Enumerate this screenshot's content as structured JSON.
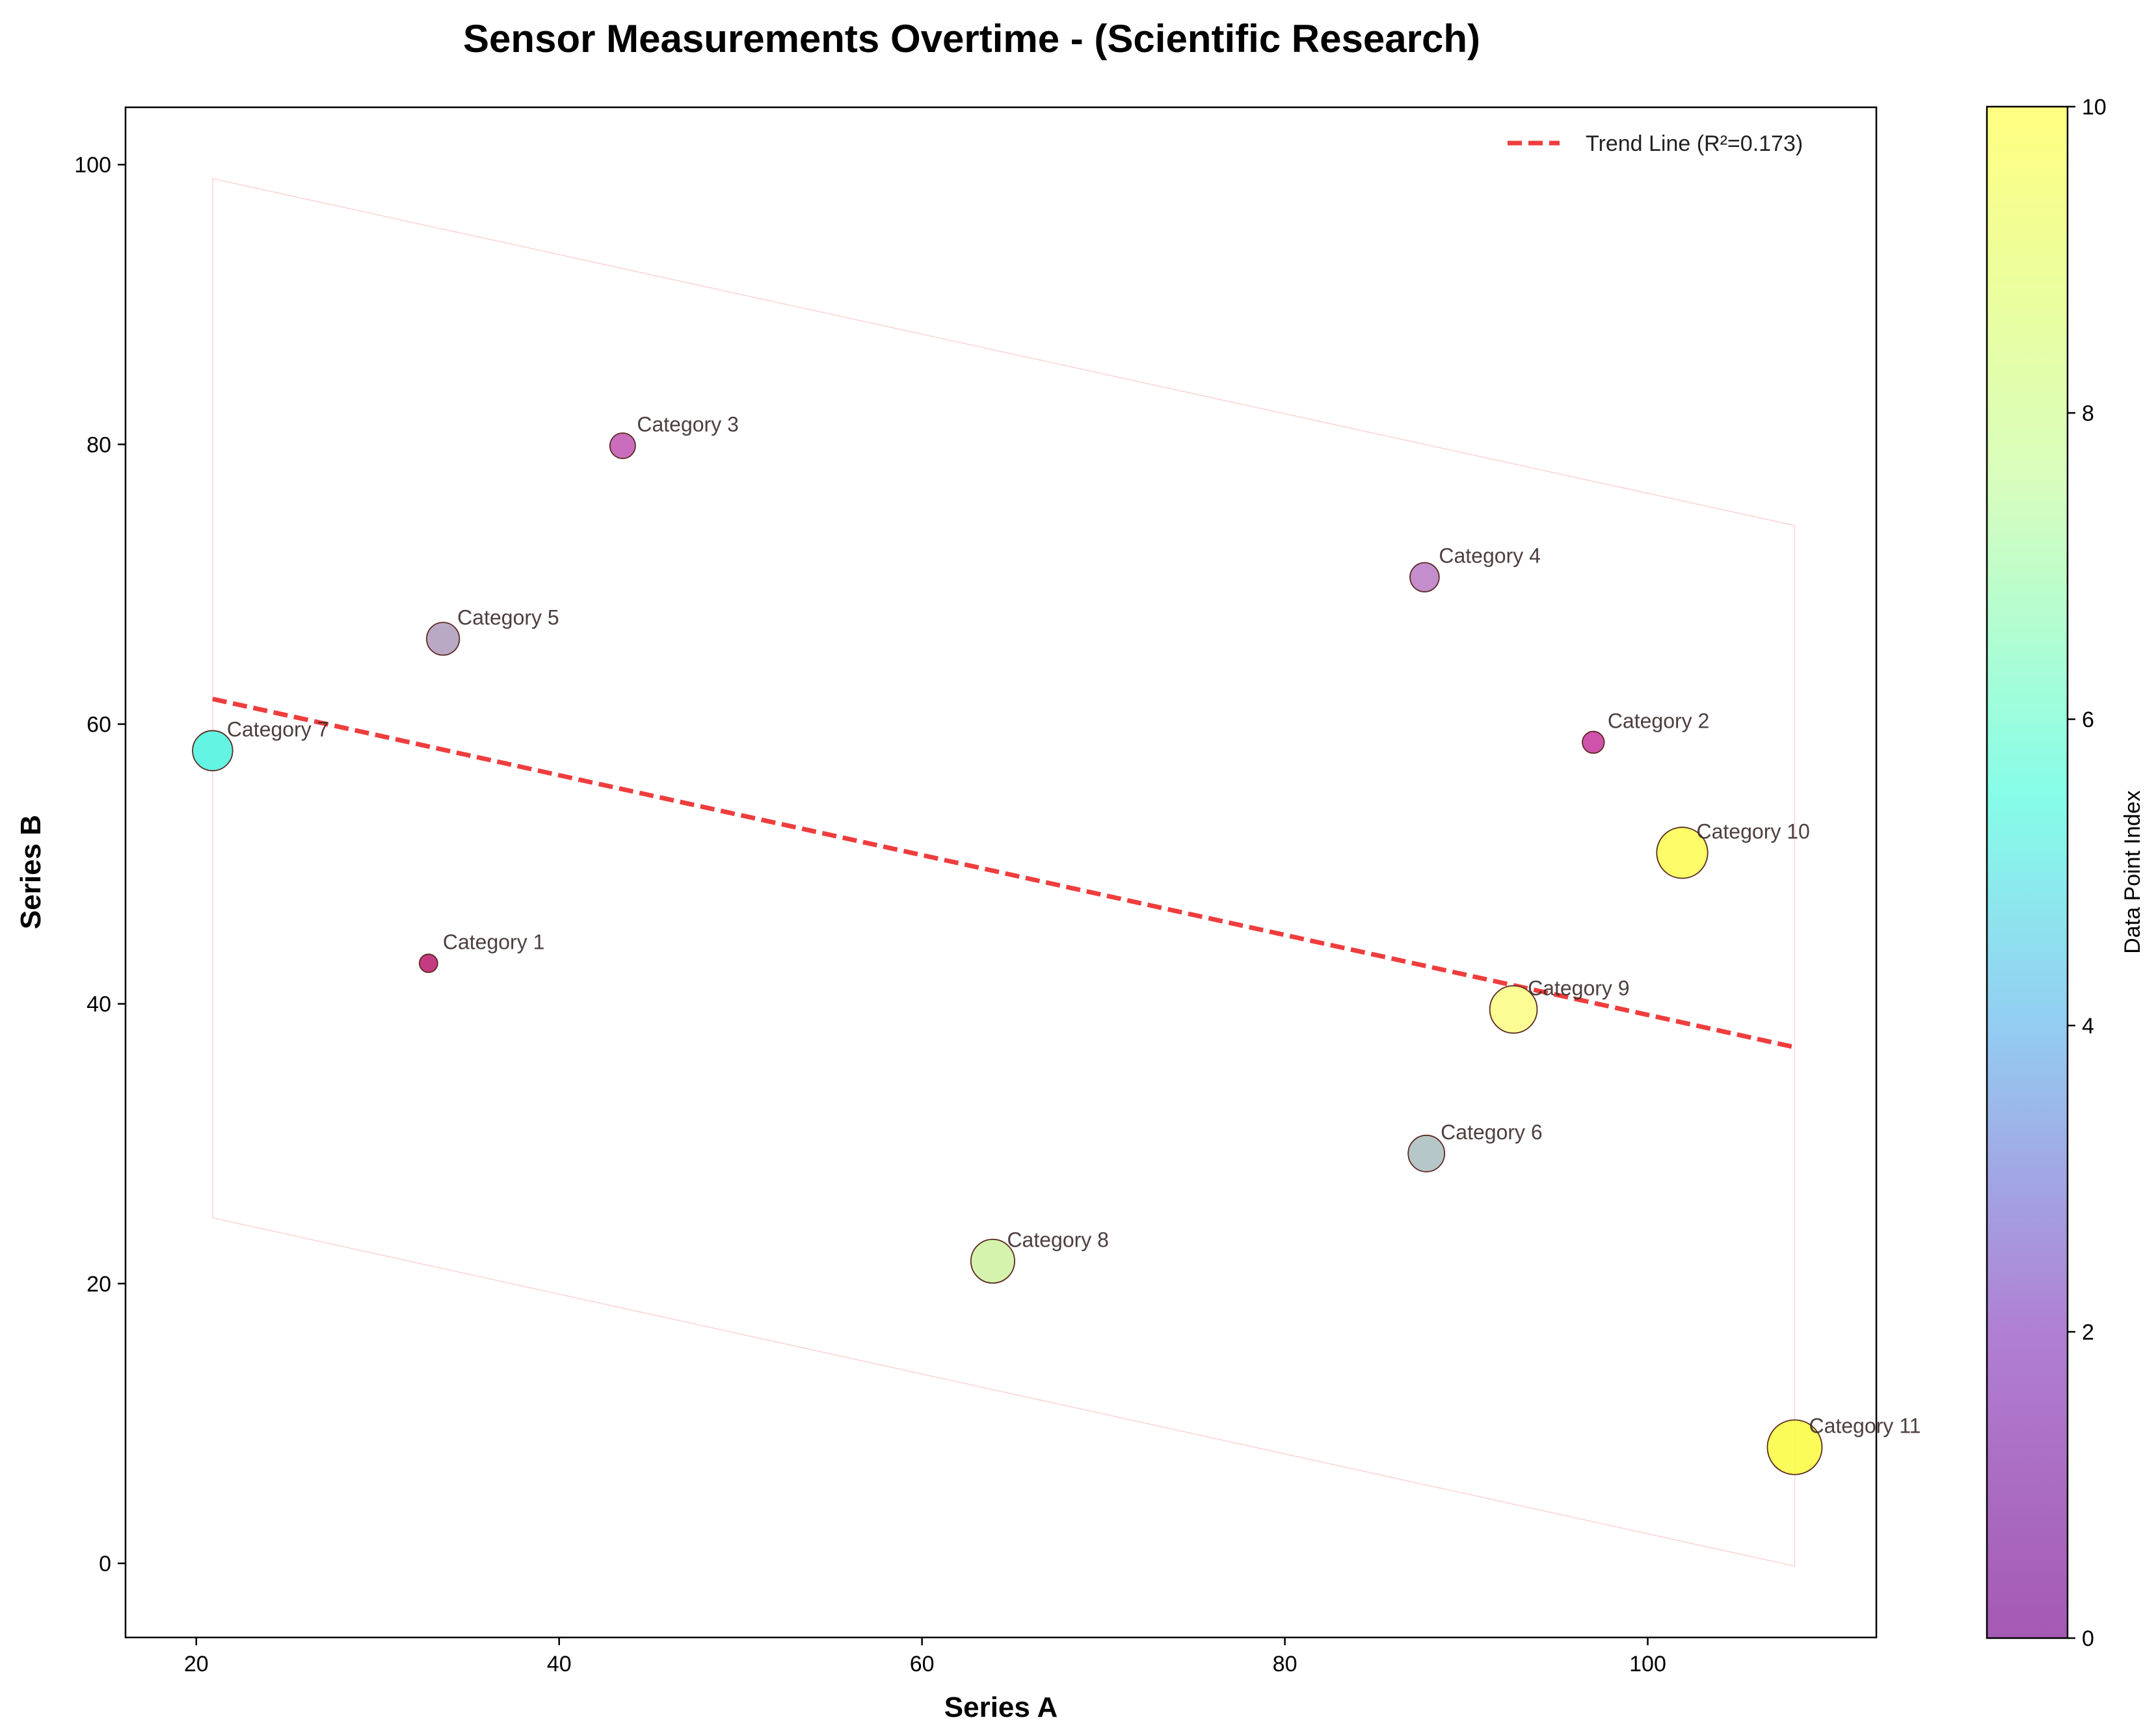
{
  "chart_data": {
    "type": "scatter",
    "title": "Sensor Measurements Overtime - (Scientific Research)",
    "xlabel": "Series A",
    "ylabel": "Series B",
    "xlim": [
      16.1,
      112.6
    ],
    "ylim": [
      -5.3,
      104.1
    ],
    "xticks": [
      20,
      40,
      60,
      80,
      100
    ],
    "yticks": [
      0,
      20,
      40,
      60,
      80,
      100
    ],
    "grid": false,
    "points": [
      {
        "label": "Category 1",
        "x": 32.8,
        "y": 42.9,
        "index": 0
      },
      {
        "label": "Category 2",
        "x": 97.0,
        "y": 58.7,
        "index": 1
      },
      {
        "label": "Category 3",
        "x": 43.5,
        "y": 79.9,
        "index": 2
      },
      {
        "label": "Category 4",
        "x": 87.7,
        "y": 70.5,
        "index": 3
      },
      {
        "label": "Category 5",
        "x": 33.6,
        "y": 66.1,
        "index": 4
      },
      {
        "label": "Category 6",
        "x": 87.8,
        "y": 29.3,
        "index": 5
      },
      {
        "label": "Category 7",
        "x": 20.9,
        "y": 58.1,
        "index": 6
      },
      {
        "label": "Category 8",
        "x": 63.9,
        "y": 21.6,
        "index": 7
      },
      {
        "label": "Category 9",
        "x": 92.6,
        "y": 39.6,
        "index": 8
      },
      {
        "label": "Category 10",
        "x": 101.9,
        "y": 50.8,
        "index": 9
      },
      {
        "label": "Category 11",
        "x": 108.1,
        "y": 8.3,
        "index": 10
      }
    ],
    "trend_line": {
      "label": "Trend Line (R²=0.173)",
      "x": [
        20.9,
        108.1
      ],
      "y": [
        61.8,
        36.9
      ],
      "color": "#ee3333"
    },
    "confidence_band": {
      "upper": [
        [
          20.9,
          99.0
        ],
        [
          108.1,
          74.2
        ]
      ],
      "lower": [
        [
          20.9,
          24.7
        ],
        [
          108.1,
          -0.2
        ]
      ]
    },
    "legend_position": "top-right",
    "colorbar": {
      "label": "Data Point Index",
      "range": [
        0,
        10
      ],
      "ticks": [
        0,
        2,
        4,
        6,
        8,
        10
      ],
      "colormap": "plasma-like with alpha (purple → cyan → yellow)"
    }
  }
}
